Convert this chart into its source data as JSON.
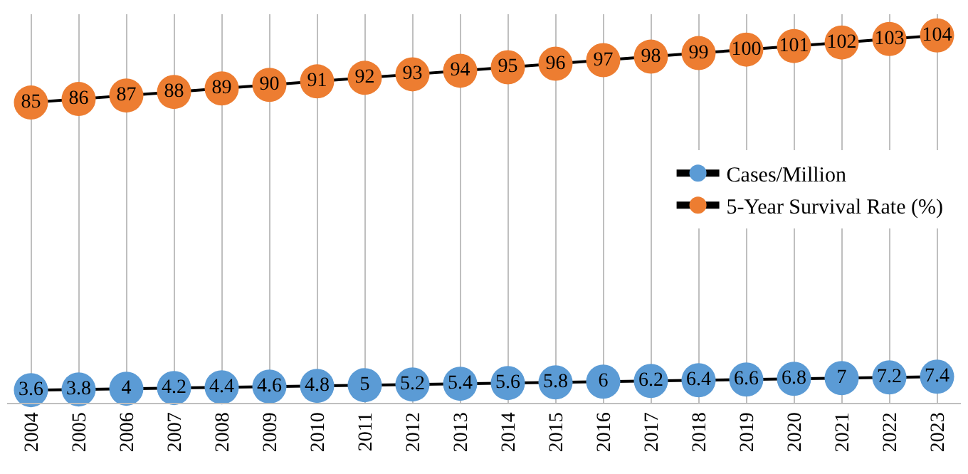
{
  "chart_data": {
    "type": "line",
    "categories": [
      "2004",
      "2005",
      "2006",
      "2007",
      "2008",
      "2009",
      "2010",
      "2011",
      "2012",
      "2013",
      "2014",
      "2015",
      "2016",
      "2017",
      "2018",
      "2019",
      "2020",
      "2021",
      "2022",
      "2023"
    ],
    "series": [
      {
        "name": "Cases/Million",
        "color": "#5b9bd5",
        "values": [
          3.6,
          3.8,
          4,
          4.2,
          4.4,
          4.6,
          4.8,
          5,
          5.2,
          5.4,
          5.6,
          5.8,
          6,
          6.2,
          6.4,
          6.6,
          6.8,
          7,
          7.2,
          7.4
        ]
      },
      {
        "name": "5-Year Survival Rate (%)",
        "color": "#ed7d31",
        "values": [
          85,
          86,
          87,
          88,
          89,
          90,
          91,
          92,
          93,
          94,
          95,
          96,
          97,
          98,
          99,
          100,
          101,
          102,
          103,
          104
        ]
      }
    ],
    "ylim": [
      0,
      110
    ],
    "tick_labels": "x",
    "grid": "x",
    "legend": "right",
    "marker": "circle",
    "line_style": "solid",
    "data_labels": true
  }
}
